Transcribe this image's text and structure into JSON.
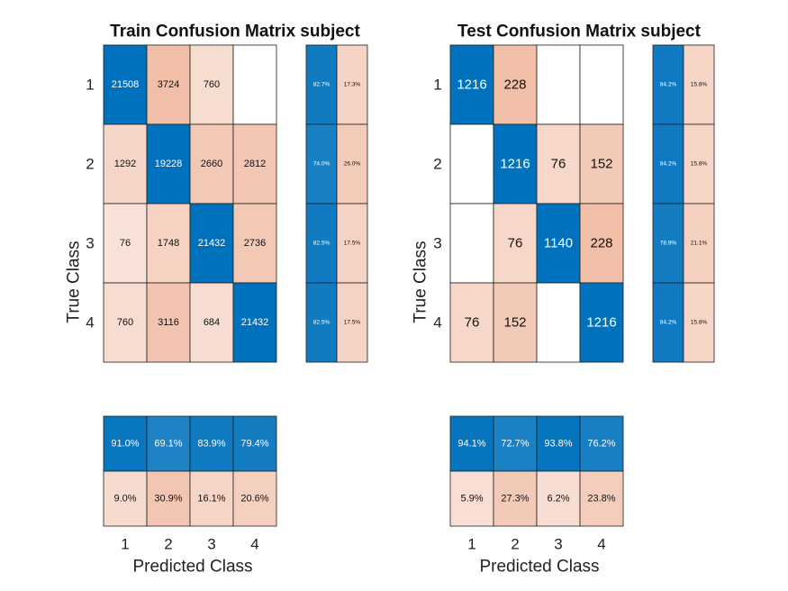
{
  "chart_data": [
    {
      "type": "heatmap",
      "title": "Train Confusion Matrix subject",
      "xlabel": "Predicted Class",
      "ylabel": "True Class",
      "x_tick_labels": [
        "1",
        "2",
        "3",
        "4"
      ],
      "y_tick_labels": [
        "1",
        "2",
        "3",
        "4"
      ],
      "matrix": [
        [
          21508,
          3724,
          760,
          null
        ],
        [
          1292,
          19228,
          2660,
          2812
        ],
        [
          76,
          1748,
          21432,
          2736
        ],
        [
          760,
          3116,
          684,
          21432
        ]
      ],
      "row_summary": [
        [
          "82.7%",
          "17.3%"
        ],
        [
          "74.0%",
          "26.0%"
        ],
        [
          "82.5%",
          "17.5%"
        ],
        [
          "82.5%",
          "17.5%"
        ]
      ],
      "column_summary": [
        [
          "91.0%",
          "69.1%",
          "83.9%",
          "79.4%"
        ],
        [
          "9.0%",
          "30.9%",
          "16.1%",
          "20.6%"
        ]
      ],
      "colors": {
        "correct": "#0072BD",
        "error": "#D95319",
        "empty": "#ffffff"
      }
    },
    {
      "type": "heatmap",
      "title": "Test Confusion Matrix subject",
      "xlabel": "Predicted Class",
      "ylabel": "True Class",
      "x_tick_labels": [
        "1",
        "2",
        "3",
        "4"
      ],
      "y_tick_labels": [
        "1",
        "2",
        "3",
        "4"
      ],
      "matrix": [
        [
          1216,
          228,
          null,
          null
        ],
        [
          null,
          1216,
          76,
          152
        ],
        [
          null,
          76,
          1140,
          228
        ],
        [
          76,
          152,
          null,
          1216
        ]
      ],
      "row_summary": [
        [
          "84.2%",
          "15.8%"
        ],
        [
          "84.2%",
          "15.8%"
        ],
        [
          "78.9%",
          "21.1%"
        ],
        [
          "84.2%",
          "15.8%"
        ]
      ],
      "column_summary": [
        [
          "94.1%",
          "72.7%",
          "93.8%",
          "76.2%"
        ],
        [
          "5.9%",
          "27.3%",
          "6.2%",
          "23.8%"
        ]
      ],
      "colors": {
        "correct": "#0072BD",
        "error": "#D95319",
        "empty": "#ffffff"
      }
    }
  ]
}
